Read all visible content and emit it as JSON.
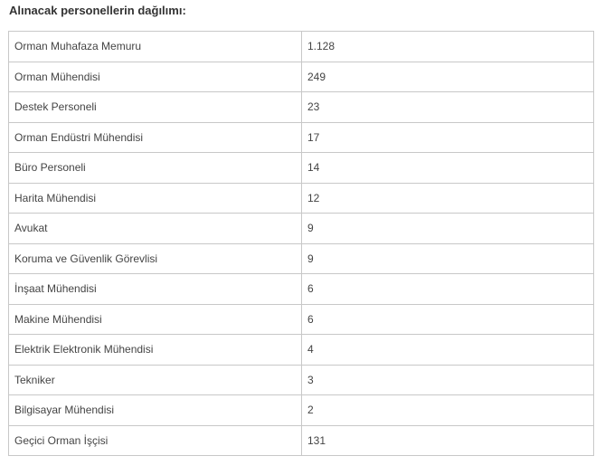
{
  "title": "Alınacak personellerin dağılımı:",
  "rows": [
    {
      "role": "Orman Muhafaza Memuru",
      "count": "1.128"
    },
    {
      "role": "Orman Mühendisi",
      "count": "249"
    },
    {
      "role": "Destek Personeli",
      "count": "23"
    },
    {
      "role": "Orman Endüstri Mühendisi",
      "count": "17"
    },
    {
      "role": "Büro Personeli",
      "count": "14"
    },
    {
      "role": "Harita Mühendisi",
      "count": "12"
    },
    {
      "role": "Avukat",
      "count": "9"
    },
    {
      "role": "Koruma ve Güvenlik Görevlisi",
      "count": "9"
    },
    {
      "role": "İnşaat Mühendisi",
      "count": "6"
    },
    {
      "role": "Makine Mühendisi",
      "count": "6"
    },
    {
      "role": "Elektrik Elektronik Mühendisi",
      "count": "4"
    },
    {
      "role": "Tekniker",
      "count": "3"
    },
    {
      "role": "Bilgisayar Mühendisi",
      "count": "2"
    },
    {
      "role": "Geçici Orman İşçisi",
      "count": "131"
    }
  ]
}
